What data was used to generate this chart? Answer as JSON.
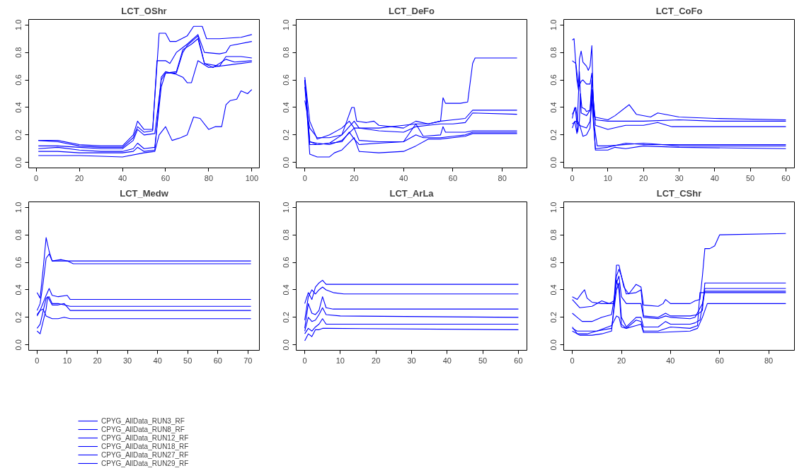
{
  "chart_data": [
    {
      "type": "line",
      "title": "LCT_OShr",
      "xlim": [
        -3.5,
        103.5
      ],
      "ylim": [
        -0.04,
        1.04
      ],
      "xticks": [
        0,
        20,
        40,
        60,
        80,
        100
      ],
      "yticks": [
        {
          "value": 0,
          "label": "0.0"
        },
        {
          "value": 0.2,
          "label": "0.2"
        },
        {
          "value": 0.4,
          "label": "0.4"
        },
        {
          "value": 0.6,
          "label": "0.6"
        },
        {
          "value": 0.8,
          "label": "0.8"
        },
        {
          "value": 1,
          "label": "1.0"
        }
      ],
      "legend": "bottom left",
      "series": [
        {
          "name": "CPYG_AllData_RUN3_RF",
          "color": "#0000ff",
          "x": [
            1,
            10,
            20,
            30,
            40,
            45,
            47,
            50,
            54,
            57,
            60,
            62,
            65,
            70,
            73,
            77,
            79,
            85,
            95,
            100
          ],
          "values": [
            0.16,
            0.16,
            0.13,
            0.12,
            0.12,
            0.2,
            0.3,
            0.24,
            0.24,
            0.94,
            0.94,
            0.88,
            0.88,
            0.92,
            0.99,
            0.99,
            0.9,
            0.9,
            0.91,
            0.93
          ]
        },
        {
          "name": "CPYG_AllData_RUN8_RF",
          "color": "#0000ff",
          "x": [
            1,
            10,
            20,
            30,
            40,
            45,
            47,
            50,
            54,
            56,
            60,
            62,
            65,
            70,
            75,
            78,
            85,
            88,
            90,
            100
          ],
          "values": [
            0.16,
            0.15,
            0.12,
            0.11,
            0.11,
            0.18,
            0.26,
            0.22,
            0.23,
            0.74,
            0.74,
            0.72,
            0.8,
            0.86,
            0.93,
            0.8,
            0.79,
            0.8,
            0.85,
            0.88
          ]
        },
        {
          "name": "CPYG_AllData_RUN12_RF",
          "color": "#0000ff",
          "x": [
            1,
            10,
            20,
            30,
            40,
            45,
            47,
            50,
            55,
            58,
            60,
            65,
            68,
            70,
            75,
            78,
            85,
            88,
            95,
            100
          ],
          "values": [
            0.12,
            0.12,
            0.11,
            0.1,
            0.1,
            0.16,
            0.24,
            0.2,
            0.21,
            0.6,
            0.65,
            0.65,
            0.8,
            0.85,
            0.92,
            0.72,
            0.7,
            0.77,
            0.77,
            0.76
          ]
        },
        {
          "name": "CPYG_AllData_RUN18_RF",
          "color": "#0000ff",
          "x": [
            1,
            10,
            20,
            30,
            40,
            45,
            47,
            50,
            55,
            58,
            60,
            65,
            68,
            72,
            75,
            78,
            82,
            88,
            92,
            100
          ],
          "values": [
            0.1,
            0.11,
            0.09,
            0.08,
            0.08,
            0.1,
            0.14,
            0.1,
            0.11,
            0.55,
            0.65,
            0.66,
            0.82,
            0.86,
            0.9,
            0.72,
            0.69,
            0.75,
            0.73,
            0.74
          ]
        },
        {
          "name": "CPYG_AllData_RUN27_RF",
          "color": "#0000ff",
          "x": [
            1,
            10,
            20,
            30,
            40,
            45,
            47,
            50,
            55,
            58,
            60,
            65,
            68,
            70,
            72,
            75,
            80,
            90,
            100
          ],
          "values": [
            0.08,
            0.08,
            0.07,
            0.07,
            0.07,
            0.08,
            0.11,
            0.08,
            0.09,
            0.62,
            0.66,
            0.64,
            0.62,
            0.58,
            0.58,
            0.74,
            0.69,
            0.71,
            0.73
          ]
        },
        {
          "name": "CPYG_AllData_RUN29_RF",
          "color": "#0000ff",
          "x": [
            1,
            20,
            40,
            50,
            55,
            57,
            60,
            63,
            67,
            70,
            73,
            76,
            80,
            83,
            86,
            88,
            90,
            93,
            95,
            98,
            100
          ],
          "values": [
            0.05,
            0.05,
            0.04,
            0.07,
            0.08,
            0.2,
            0.26,
            0.16,
            0.18,
            0.2,
            0.33,
            0.32,
            0.24,
            0.26,
            0.26,
            0.42,
            0.45,
            0.46,
            0.52,
            0.5,
            0.53
          ]
        }
      ]
    },
    {
      "type": "line",
      "title": "LCT_DeFo",
      "xlim": [
        -3.5,
        90
      ],
      "ylim": [
        -0.04,
        1.04
      ],
      "xticks": [
        0,
        20,
        40,
        60,
        80
      ],
      "yticks": [
        {
          "value": 0,
          "label": "0.0"
        },
        {
          "value": 0.2,
          "label": "0.2"
        },
        {
          "value": 0.4,
          "label": "0.4"
        },
        {
          "value": 0.6,
          "label": "0.6"
        },
        {
          "value": 0.8,
          "label": "0.8"
        },
        {
          "value": 1,
          "label": "1.0"
        }
      ],
      "series": [
        {
          "color": "#0000ff",
          "x": [
            0,
            2,
            5,
            10,
            15,
            18,
            20,
            30,
            40,
            45,
            50,
            55,
            56,
            57,
            63,
            66,
            68,
            69,
            86
          ],
          "values": [
            0.62,
            0.3,
            0.17,
            0.2,
            0.25,
            0.3,
            0.25,
            0.25,
            0.27,
            0.28,
            0.28,
            0.3,
            0.47,
            0.43,
            0.43,
            0.44,
            0.72,
            0.76,
            0.76
          ]
        },
        {
          "color": "#0000ff",
          "x": [
            0,
            2,
            5,
            10,
            15,
            17,
            19,
            20,
            21,
            25,
            28,
            30,
            40,
            45,
            50,
            55,
            60,
            65,
            68,
            86
          ],
          "values": [
            0.45,
            0.25,
            0.18,
            0.18,
            0.2,
            0.3,
            0.4,
            0.4,
            0.3,
            0.29,
            0.3,
            0.27,
            0.25,
            0.3,
            0.28,
            0.3,
            0.31,
            0.32,
            0.38,
            0.38
          ]
        },
        {
          "color": "#0000ff",
          "x": [
            0,
            2,
            5,
            10,
            15,
            20,
            22,
            30,
            40,
            45,
            50,
            55,
            60,
            65,
            68,
            86
          ],
          "values": [
            0.6,
            0.15,
            0.13,
            0.14,
            0.2,
            0.3,
            0.25,
            0.23,
            0.22,
            0.26,
            0.27,
            0.28,
            0.28,
            0.29,
            0.36,
            0.35
          ]
        },
        {
          "color": "#0000ff",
          "x": [
            0,
            2,
            5,
            10,
            15,
            20,
            22,
            30,
            40,
            45,
            48,
            55,
            56,
            57,
            65,
            68,
            86
          ],
          "values": [
            0.6,
            0.15,
            0.14,
            0.13,
            0.16,
            0.25,
            0.16,
            0.15,
            0.15,
            0.28,
            0.19,
            0.2,
            0.26,
            0.22,
            0.22,
            0.23,
            0.23
          ]
        },
        {
          "color": "#0000ff",
          "x": [
            0,
            2,
            5,
            15,
            18,
            20,
            22,
            30,
            40,
            45,
            48,
            55,
            60,
            65,
            68,
            86
          ],
          "values": [
            0.55,
            0.13,
            0.13,
            0.15,
            0.22,
            0.17,
            0.13,
            0.14,
            0.15,
            0.2,
            0.18,
            0.18,
            0.19,
            0.2,
            0.22,
            0.22
          ]
        },
        {
          "color": "#0000ff",
          "x": [
            0,
            2,
            5,
            10,
            12,
            15,
            20,
            22,
            30,
            40,
            45,
            50,
            55,
            60,
            65,
            68,
            86
          ],
          "values": [
            0.6,
            0.06,
            0.04,
            0.04,
            0.07,
            0.09,
            0.18,
            0.08,
            0.07,
            0.08,
            0.12,
            0.17,
            0.17,
            0.18,
            0.19,
            0.21,
            0.21
          ]
        }
      ]
    },
    {
      "type": "line",
      "title": "LCT_CoFo",
      "xlim": [
        -2.4,
        62.4
      ],
      "ylim": [
        -0.04,
        1.04
      ],
      "xticks": [
        0,
        10,
        20,
        30,
        40,
        50,
        60
      ],
      "yticks": [
        {
          "value": 0,
          "label": "0.0"
        },
        {
          "value": 0.2,
          "label": "0.2"
        },
        {
          "value": 0.4,
          "label": "0.4"
        },
        {
          "value": 0.6,
          "label": "0.6"
        },
        {
          "value": 0.8,
          "label": "0.8"
        },
        {
          "value": 1,
          "label": "1.0"
        }
      ],
      "series": [
        {
          "color": "#0000ff",
          "x": [
            0,
            0.5,
            1.3,
            1.8,
            2,
            2.5,
            3,
            4,
            4.5,
            5,
            5.5,
            6,
            7,
            10,
            20,
            30,
            40,
            60
          ],
          "values": [
            0.89,
            0.9,
            0.6,
            0.52,
            0.75,
            0.81,
            0.73,
            0.7,
            0.67,
            0.7,
            0.85,
            0.3,
            0.12,
            0.12,
            0.14,
            0.12,
            0.12,
            0.12
          ]
        },
        {
          "color": "#0000ff",
          "x": [
            0,
            1,
            1.8,
            2.5,
            3,
            4,
            5,
            5.5,
            6.2,
            10,
            12,
            16,
            18,
            22,
            24,
            30,
            40,
            60
          ],
          "values": [
            0.74,
            0.72,
            0.55,
            0.59,
            0.6,
            0.57,
            0.57,
            0.65,
            0.33,
            0.31,
            0.34,
            0.42,
            0.35,
            0.33,
            0.36,
            0.33,
            0.32,
            0.31
          ]
        },
        {
          "color": "#0000ff",
          "x": [
            0,
            0.7,
            1,
            1.5,
            2,
            2.3,
            2.7,
            3.5,
            4,
            5,
            5.5,
            6.5,
            10,
            20,
            30,
            40,
            60
          ],
          "values": [
            0.32,
            0.4,
            0.36,
            0.22,
            0.3,
            0.5,
            0.4,
            0.39,
            0.37,
            0.38,
            0.53,
            0.31,
            0.3,
            0.3,
            0.31,
            0.3,
            0.3
          ]
        },
        {
          "color": "#0000ff",
          "x": [
            0,
            0.7,
            1.3,
            2,
            2.5,
            4,
            5,
            5.5,
            6.5,
            10,
            15,
            20,
            24,
            28,
            60
          ],
          "values": [
            0.25,
            0.3,
            0.21,
            0.66,
            0.36,
            0.34,
            0.38,
            0.6,
            0.27,
            0.24,
            0.27,
            0.27,
            0.29,
            0.26,
            0.26
          ]
        },
        {
          "color": "#0000ff",
          "x": [
            0,
            1,
            1.5,
            2,
            3,
            4,
            5,
            5.5,
            6.5,
            10,
            12,
            15,
            20,
            30,
            60
          ],
          "values": [
            0.35,
            0.4,
            0.3,
            0.28,
            0.19,
            0.2,
            0.25,
            0.5,
            0.09,
            0.09,
            0.11,
            0.1,
            0.12,
            0.11,
            0.1
          ]
        },
        {
          "color": "#0000ff",
          "x": [
            0,
            1,
            2,
            3,
            4,
            5,
            5.5,
            6.5,
            10,
            15,
            20,
            30,
            60
          ],
          "values": [
            0.28,
            0.3,
            0.27,
            0.26,
            0.25,
            0.3,
            0.45,
            0.1,
            0.11,
            0.14,
            0.13,
            0.13,
            0.13
          ]
        }
      ]
    },
    {
      "type": "line",
      "title": "LCT_Medw",
      "xlim": [
        -2.8,
        73.8
      ],
      "ylim": [
        -0.04,
        1.04
      ],
      "xticks": [
        0,
        10,
        20,
        30,
        40,
        50,
        60,
        70
      ],
      "yticks": [
        {
          "value": 0,
          "label": "0.0"
        },
        {
          "value": 0.2,
          "label": "0.2"
        },
        {
          "value": 0.4,
          "label": "0.4"
        },
        {
          "value": 0.6,
          "label": "0.6"
        },
        {
          "value": 0.8,
          "label": "0.8"
        },
        {
          "value": 1,
          "label": "1.0"
        }
      ],
      "series": [
        {
          "color": "#0000ff",
          "x": [
            0,
            1,
            2,
            3,
            4,
            5,
            8,
            10,
            71
          ],
          "values": [
            0.38,
            0.34,
            0.55,
            0.78,
            0.68,
            0.61,
            0.62,
            0.61,
            0.61
          ]
        },
        {
          "color": "#0000ff",
          "x": [
            0,
            1,
            2,
            3,
            4,
            5,
            10,
            12,
            71
          ],
          "values": [
            0.25,
            0.3,
            0.45,
            0.63,
            0.66,
            0.61,
            0.61,
            0.59,
            0.59
          ]
        },
        {
          "color": "#0000ff",
          "x": [
            0,
            1,
            3,
            4,
            5,
            7,
            10,
            11,
            71
          ],
          "values": [
            0.21,
            0.25,
            0.36,
            0.41,
            0.36,
            0.35,
            0.36,
            0.33,
            0.33
          ]
        },
        {
          "color": "#0000ff",
          "x": [
            0,
            1,
            3,
            4,
            5,
            7,
            9,
            11,
            71
          ],
          "values": [
            0.12,
            0.15,
            0.34,
            0.35,
            0.3,
            0.3,
            0.29,
            0.28,
            0.28
          ]
        },
        {
          "color": "#0000ff",
          "x": [
            0,
            1,
            3,
            3.5,
            5,
            7,
            9,
            11,
            71
          ],
          "values": [
            0.1,
            0.08,
            0.26,
            0.35,
            0.29,
            0.29,
            0.3,
            0.25,
            0.25
          ]
        },
        {
          "color": "#0000ff",
          "x": [
            0,
            1,
            2,
            3,
            5,
            7,
            9,
            11,
            71
          ],
          "values": [
            0.22,
            0.25,
            0.26,
            0.21,
            0.19,
            0.19,
            0.2,
            0.19,
            0.19
          ]
        }
      ]
    },
    {
      "type": "line",
      "title": "LCT_ArLa",
      "xlim": [
        -2.4,
        62.4
      ],
      "ylim": [
        -0.04,
        1.04
      ],
      "xticks": [
        0,
        10,
        20,
        30,
        40,
        50,
        60
      ],
      "yticks": [
        {
          "value": 0,
          "label": "0.0"
        },
        {
          "value": 0.2,
          "label": "0.2"
        },
        {
          "value": 0.4,
          "label": "0.4"
        },
        {
          "value": 0.6,
          "label": "0.6"
        },
        {
          "value": 0.8,
          "label": "0.8"
        },
        {
          "value": 1,
          "label": "1.0"
        }
      ],
      "series": [
        {
          "color": "#0000ff",
          "x": [
            0,
            1,
            2,
            3,
            4,
            5,
            6,
            60
          ],
          "values": [
            0.3,
            0.38,
            0.33,
            0.42,
            0.45,
            0.47,
            0.44,
            0.44
          ]
        },
        {
          "color": "#0000ff",
          "x": [
            0,
            1,
            2,
            3,
            4,
            5,
            6,
            8,
            11,
            60
          ],
          "values": [
            0.18,
            0.35,
            0.4,
            0.37,
            0.4,
            0.42,
            0.4,
            0.38,
            0.37,
            0.37
          ]
        },
        {
          "color": "#0000ff",
          "x": [
            0,
            1,
            2,
            3,
            4,
            5,
            6,
            8,
            60
          ],
          "values": [
            0.12,
            0.3,
            0.23,
            0.22,
            0.25,
            0.35,
            0.27,
            0.26,
            0.26
          ]
        },
        {
          "color": "#0000ff",
          "x": [
            0,
            1,
            2,
            3,
            4,
            5,
            6,
            10,
            60
          ],
          "values": [
            0.1,
            0.2,
            0.17,
            0.18,
            0.22,
            0.27,
            0.22,
            0.21,
            0.2
          ]
        },
        {
          "color": "#0000ff",
          "x": [
            0,
            1,
            2,
            3,
            4,
            5,
            6,
            60
          ],
          "values": [
            0.08,
            0.12,
            0.1,
            0.13,
            0.15,
            0.19,
            0.15,
            0.15
          ]
        },
        {
          "color": "#0000ff",
          "x": [
            0,
            1,
            2,
            3,
            4,
            5,
            6,
            60
          ],
          "values": [
            0.03,
            0.08,
            0.06,
            0.11,
            0.11,
            0.12,
            0.12,
            0.11
          ]
        }
      ]
    },
    {
      "type": "line",
      "title": "LCT_CShr",
      "xlim": [
        -3.5,
        90.5
      ],
      "ylim": [
        -0.04,
        1.04
      ],
      "xticks": [
        0,
        20,
        40,
        60,
        80
      ],
      "yticks": [
        {
          "value": 0,
          "label": "0.0"
        },
        {
          "value": 0.2,
          "label": "0.2"
        },
        {
          "value": 0.4,
          "label": "0.4"
        },
        {
          "value": 0.6,
          "label": "0.6"
        },
        {
          "value": 0.8,
          "label": "0.8"
        },
        {
          "value": 1,
          "label": "1.0"
        }
      ],
      "series": [
        {
          "color": "#0000ff",
          "x": [
            0,
            2,
            4,
            5,
            6,
            8,
            12,
            15,
            17,
            18,
            19,
            20,
            21,
            23,
            26,
            28,
            29,
            35,
            37,
            38,
            40,
            48,
            50,
            52,
            53,
            54,
            56,
            58,
            60,
            87
          ],
          "values": [
            0.35,
            0.33,
            0.38,
            0.4,
            0.34,
            0.31,
            0.3,
            0.3,
            0.32,
            0.58,
            0.58,
            0.5,
            0.42,
            0.37,
            0.44,
            0.42,
            0.29,
            0.28,
            0.3,
            0.33,
            0.3,
            0.3,
            0.32,
            0.33,
            0.5,
            0.7,
            0.7,
            0.72,
            0.8,
            0.81
          ]
        },
        {
          "color": "#0000ff",
          "x": [
            0,
            3,
            8,
            12,
            15,
            17,
            18,
            19,
            20,
            22,
            26,
            28,
            29,
            35,
            38,
            40,
            48,
            51,
            53,
            54,
            87
          ],
          "values": [
            0.33,
            0.27,
            0.28,
            0.32,
            0.3,
            0.3,
            0.5,
            0.55,
            0.5,
            0.37,
            0.38,
            0.4,
            0.21,
            0.2,
            0.23,
            0.21,
            0.21,
            0.22,
            0.25,
            0.45,
            0.45
          ]
        },
        {
          "color": "#0000ff",
          "x": [
            0,
            2,
            4,
            8,
            12,
            16,
            18,
            19,
            20,
            22,
            26,
            28,
            29,
            35,
            38,
            40,
            48,
            50,
            53,
            54,
            87
          ],
          "values": [
            0.23,
            0.2,
            0.17,
            0.17,
            0.2,
            0.22,
            0.45,
            0.5,
            0.35,
            0.3,
            0.3,
            0.3,
            0.2,
            0.19,
            0.21,
            0.2,
            0.19,
            0.2,
            0.3,
            0.41,
            0.41
          ]
        },
        {
          "color": "#0000ff",
          "x": [
            0,
            2,
            6,
            10,
            16,
            18,
            19,
            20,
            22,
            26,
            28,
            29,
            35,
            38,
            40,
            48,
            50,
            52,
            54,
            87
          ],
          "values": [
            0.12,
            0.1,
            0.1,
            0.1,
            0.12,
            0.4,
            0.45,
            0.2,
            0.13,
            0.2,
            0.2,
            0.13,
            0.13,
            0.17,
            0.15,
            0.15,
            0.16,
            0.18,
            0.39,
            0.39
          ]
        },
        {
          "color": "#0000ff",
          "x": [
            0,
            2,
            6,
            10,
            16,
            18,
            19,
            20,
            22,
            26,
            28,
            29,
            35,
            40,
            48,
            51,
            52,
            87
          ],
          "values": [
            0.13,
            0.08,
            0.08,
            0.1,
            0.14,
            0.21,
            0.2,
            0.13,
            0.12,
            0.18,
            0.17,
            0.1,
            0.1,
            0.13,
            0.12,
            0.14,
            0.38,
            0.38
          ]
        },
        {
          "color": "#0000ff",
          "x": [
            0,
            3,
            8,
            12,
            16,
            18,
            19,
            20,
            22,
            26,
            28,
            29,
            35,
            48,
            51,
            53,
            55,
            87
          ],
          "values": [
            0.1,
            0.07,
            0.07,
            0.08,
            0.1,
            0.47,
            0.4,
            0.15,
            0.12,
            0.14,
            0.15,
            0.09,
            0.09,
            0.1,
            0.12,
            0.2,
            0.3,
            0.3
          ]
        }
      ]
    }
  ]
}
